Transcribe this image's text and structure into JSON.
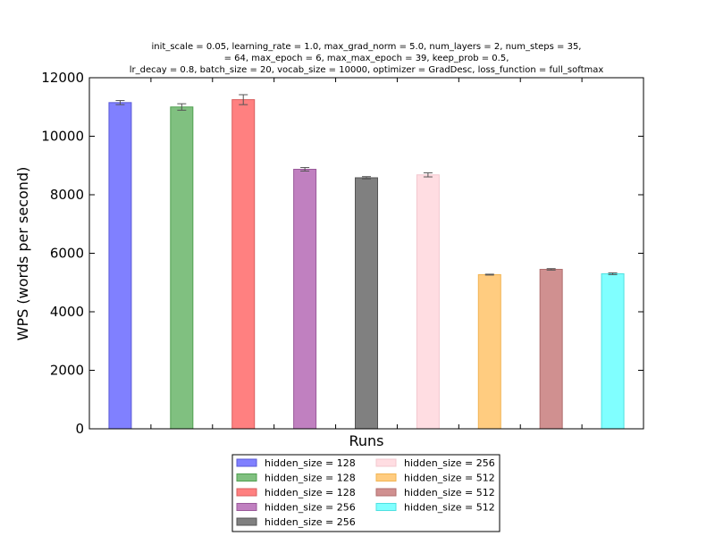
{
  "chart_data": {
    "type": "bar",
    "title_lines": [
      "init_scale = 0.05, learning_rate = 1.0, max_grad_norm = 5.0, num_layers = 2, num_steps = 35,",
      "= 64, max_epoch = 6, max_max_epoch = 39, keep_prob = 0.5,",
      "lr_decay = 0.8, batch_size = 20, vocab_size = 10000, optimizer = GradDesc, loss_function = full_softmax"
    ],
    "xlabel": "Runs",
    "ylabel": "WPS (words per second)",
    "ylim": [
      0,
      12000
    ],
    "yticks": [
      0,
      2000,
      4000,
      6000,
      8000,
      10000,
      12000
    ],
    "grid": false,
    "legend_position": "bottom-center, below axes",
    "series": [
      {
        "name": "hidden_size = 128",
        "value": 11150,
        "error": 70,
        "color": "#8080ff",
        "edge": "#5a5ad6"
      },
      {
        "name": "hidden_size = 128",
        "value": 11000,
        "error": 110,
        "color": "#80c080",
        "edge": "#4f9f4f"
      },
      {
        "name": "hidden_size = 128",
        "value": 11250,
        "error": 170,
        "color": "#ff8080",
        "edge": "#d95f5f"
      },
      {
        "name": "hidden_size = 256",
        "value": 8870,
        "error": 60,
        "color": "#c080c0",
        "edge": "#9a5a9a"
      },
      {
        "name": "hidden_size = 256",
        "value": 8580,
        "error": 40,
        "color": "#808080",
        "edge": "#555555"
      },
      {
        "name": "hidden_size = 256",
        "value": 8680,
        "error": 70,
        "color": "#ffdde2",
        "edge": "#f3c8cf"
      },
      {
        "name": "hidden_size = 512",
        "value": 5270,
        "error": 15,
        "color": "#ffcc80",
        "edge": "#f2b452"
      },
      {
        "name": "hidden_size = 512",
        "value": 5450,
        "error": 25,
        "color": "#d09090",
        "edge": "#b06e6e"
      },
      {
        "name": "hidden_size = 512",
        "value": 5300,
        "error": 30,
        "color": "#80ffff",
        "edge": "#4fe0e0"
      }
    ]
  }
}
